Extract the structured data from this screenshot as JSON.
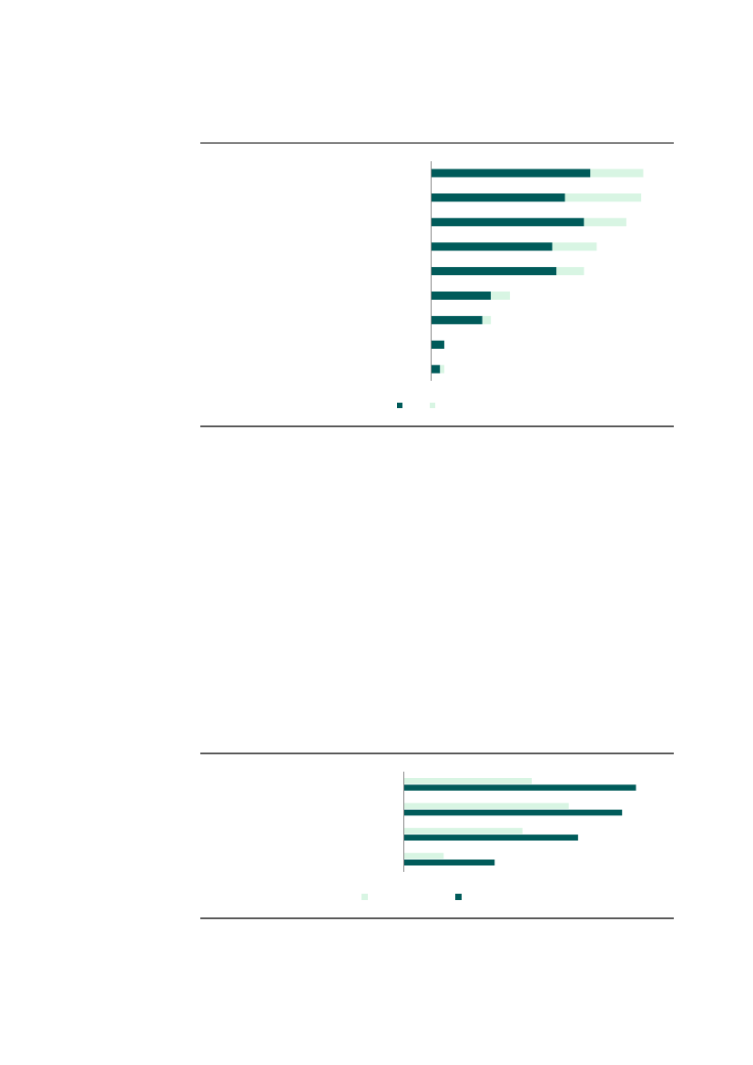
{
  "colors": {
    "dark": "#005b5a",
    "light": "#d8f5e3",
    "rule": "#222222",
    "axis": "#888888"
  },
  "chart_data": [
    {
      "type": "bar",
      "orientation": "horizontal",
      "stacked": true,
      "title": "",
      "xlabel": "",
      "ylabel": "",
      "xlim": [
        0,
        100
      ],
      "grid": false,
      "legend": "bottom",
      "categories": [
        "",
        "",
        "",
        "",
        "",
        "",
        "",
        "",
        ""
      ],
      "series": [
        {
          "color": "#005b5a",
          "values": [
            75,
            63,
            72,
            57,
            59,
            28,
            24,
            6,
            4
          ]
        },
        {
          "color": "#d8f5e3",
          "values": [
            25,
            36,
            20,
            21,
            13,
            9,
            4,
            0,
            2
          ]
        }
      ]
    },
    {
      "type": "bar",
      "orientation": "horizontal",
      "stacked": false,
      "title": "",
      "xlabel": "",
      "ylabel": "",
      "xlim": [
        0,
        100
      ],
      "grid": false,
      "legend": "bottom",
      "categories": [
        "",
        "",
        "",
        ""
      ],
      "series": [
        {
          "color": "#d8f5e3",
          "values": [
            55,
            71,
            51,
            17
          ]
        },
        {
          "color": "#005b5a",
          "values": [
            100,
            94,
            75,
            39
          ]
        }
      ]
    }
  ]
}
